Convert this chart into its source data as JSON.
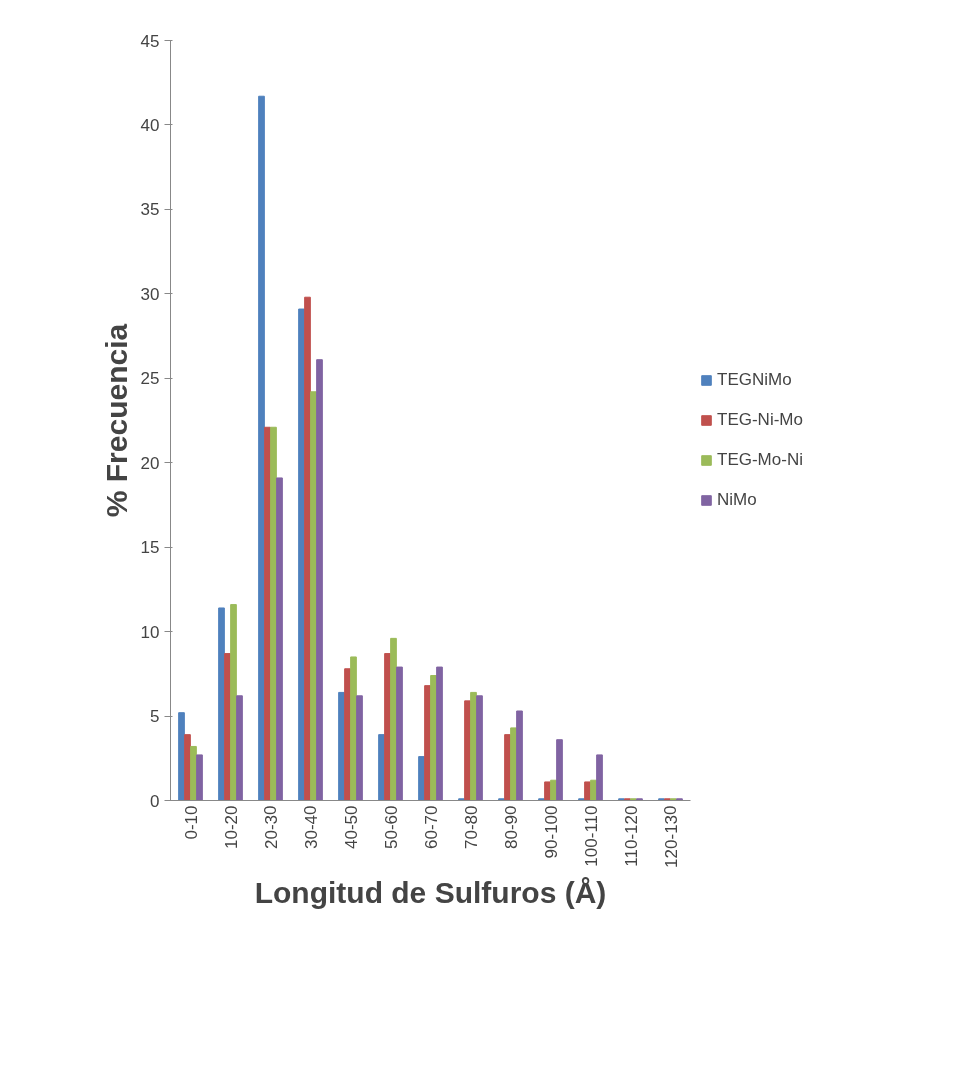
{
  "chart_data": {
    "type": "bar",
    "xlabel": "Longitud de Sulfuros (Å)",
    "ylabel": "% Frecuencia",
    "categories": [
      "0-10",
      "10-20",
      "20-30",
      "30-40",
      "40-50",
      "50-60",
      "60-70",
      "70-80",
      "80-90",
      "90-100",
      "100-110",
      "110-120",
      "120-130"
    ],
    "series": [
      {
        "name": "TEGNiMo",
        "color": "#4f81bd",
        "values": [
          5.2,
          11.4,
          41.7,
          29.1,
          6.4,
          3.9,
          2.6,
          0.1,
          0.1,
          0.1,
          0.1,
          0.1,
          0.1
        ]
      },
      {
        "name": "TEG-Ni-Mo",
        "color": "#c0504d",
        "values": [
          3.9,
          8.7,
          22.1,
          29.8,
          7.8,
          8.7,
          6.8,
          5.9,
          3.9,
          1.1,
          1.1,
          0.1,
          0.1
        ]
      },
      {
        "name": "TEG-Mo-Ni",
        "color": "#9bbb59",
        "values": [
          3.2,
          11.6,
          22.1,
          24.2,
          8.5,
          9.6,
          7.4,
          6.4,
          4.3,
          1.2,
          1.2,
          0.1,
          0.1
        ]
      },
      {
        "name": "NiMo",
        "color": "#8064a2",
        "values": [
          2.7,
          6.2,
          19.1,
          26.1,
          6.2,
          7.9,
          7.9,
          6.2,
          5.3,
          3.6,
          2.7,
          0.1,
          0.1
        ]
      }
    ],
    "ylim": [
      0,
      45
    ],
    "yticks": [
      0,
      5,
      10,
      15,
      20,
      25,
      30,
      35,
      40,
      45
    ],
    "grid": false,
    "legend": "right"
  }
}
